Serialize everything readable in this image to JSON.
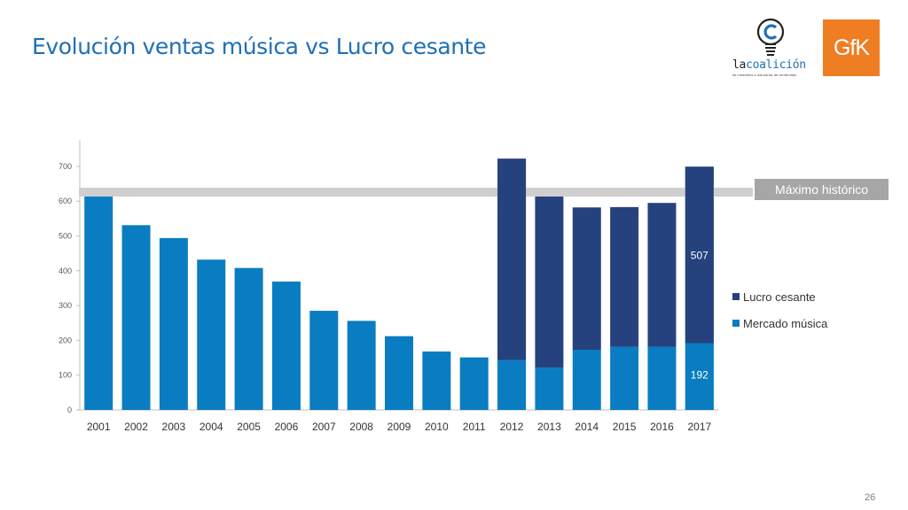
{
  "title": "Evolución ventas música vs Lucro cesante",
  "logos": {
    "coalicion_prefix": "la",
    "coalicion_name": "coalición",
    "coalicion_tagline": "de creadores e industrias de contenidos",
    "gfk": "GfK"
  },
  "annotation": {
    "label": "Máximo histórico"
  },
  "page_number": "26",
  "colors": {
    "mercado": "#0a7dc2",
    "lucro": "#26427e",
    "max_band": "#d0cece",
    "max_box": "#a6a6a6",
    "title": "#1f6fb5"
  },
  "chart_data": {
    "type": "bar",
    "stacked": true,
    "categories": [
      "2001",
      "2002",
      "2003",
      "2004",
      "2005",
      "2006",
      "2007",
      "2008",
      "2009",
      "2010",
      "2011",
      "2012",
      "2013",
      "2014",
      "2015",
      "2016",
      "2017"
    ],
    "series": [
      {
        "name": "Mercado música",
        "values": [
          626,
          531,
          494,
          432,
          408,
          369,
          285,
          256,
          212,
          168,
          151,
          144,
          122,
          173,
          182,
          182,
          192
        ]
      },
      {
        "name": "Lucro cesante",
        "values": [
          0,
          0,
          0,
          0,
          0,
          0,
          0,
          0,
          0,
          0,
          0,
          578,
          512,
          409,
          401,
          413,
          507
        ]
      }
    ],
    "data_labels": [
      {
        "series": "Lucro cesante",
        "category": "2017",
        "text": "507"
      },
      {
        "series": "Mercado música",
        "category": "2017",
        "text": "192"
      }
    ],
    "ylim": [
      0,
      750
    ],
    "yticks": [
      "0",
      "100",
      "200",
      "300",
      "400",
      "500",
      "600",
      "700"
    ],
    "reference_line": {
      "value": 626,
      "label": "Máximo histórico"
    },
    "legend_position": "right",
    "grid": false,
    "xlabel": "",
    "ylabel": ""
  }
}
